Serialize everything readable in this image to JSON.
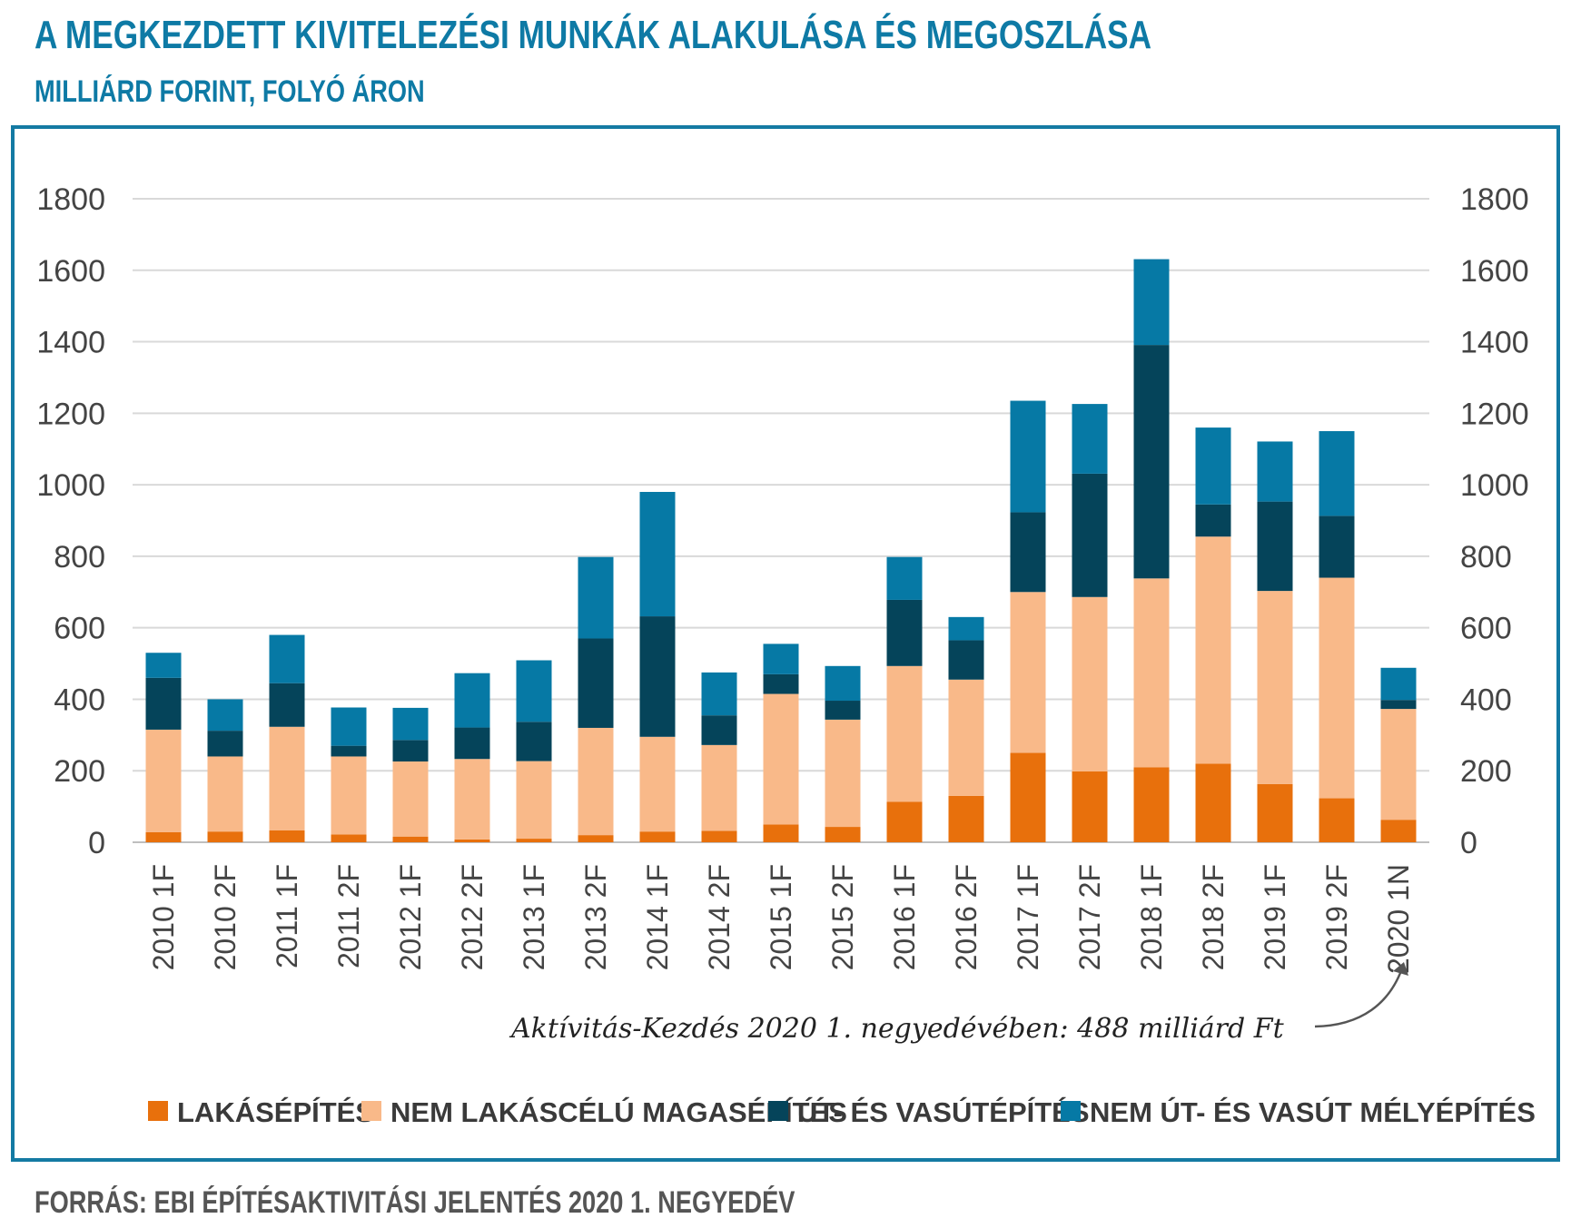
{
  "title": "A MEGKEZDETT KIVITELEZÉSI MUNKÁK ALAKULÁSA ÉS MEGOSZLÁSA",
  "subtitle": "MILLIÁRD FORINT, FOLYÓ ÁRON",
  "source": "FORRÁS: EBI ÉPÍTÉSAKTIVITÁSI JELENTÉS 2020 1. NEGYEDÉV",
  "chart_data": {
    "type": "bar",
    "stacked": true,
    "title": "A MEGKEZDETT KIVITELEZÉSI MUNKÁK ALAKULÁSA ÉS MEGOSZLÁSA",
    "ylabel": "MILLIÁRD FORINT, FOLYÓ ÁRON",
    "xlabel": "",
    "ylim": [
      0,
      1800
    ],
    "yticks": [
      0,
      200,
      400,
      600,
      800,
      1000,
      1200,
      1400,
      1600,
      1800
    ],
    "grid": true,
    "legend_position": "bottom",
    "categories": [
      "2010 1F",
      "2010 2F",
      "2011 1F",
      "2011 2F",
      "2012 1F",
      "2012 2F",
      "2013 1F",
      "2013 2F",
      "2014 1F",
      "2014 2F",
      "2015 1F",
      "2015 2F",
      "2016 1F",
      "2016 2F",
      "2017 1F",
      "2017 2F",
      "2018 1F",
      "2018 2F",
      "2019 1F",
      "2019 2F",
      "2020 1N"
    ],
    "series": [
      {
        "name": "LAKÁSÉPÍTÉS",
        "color": "#e8700c",
        "values": [
          28,
          30,
          33,
          22,
          16,
          8,
          10,
          20,
          30,
          32,
          50,
          43,
          113,
          130,
          250,
          198,
          210,
          220,
          163,
          123,
          63
        ]
      },
      {
        "name": "NEM LAKÁSCÉLÚ MAGASÉPÍTÉS",
        "color": "#f9b989",
        "values": [
          287,
          210,
          290,
          218,
          210,
          225,
          217,
          300,
          265,
          240,
          365,
          300,
          380,
          325,
          450,
          488,
          528,
          635,
          540,
          617,
          310
        ]
      },
      {
        "name": "ÚT- ÉS VASÚTÉPÍTÉS",
        "color": "#05445a",
        "values": [
          145,
          72,
          122,
          30,
          60,
          88,
          110,
          250,
          337,
          83,
          55,
          53,
          185,
          110,
          223,
          345,
          653,
          90,
          250,
          173,
          25
        ]
      },
      {
        "name": "NEM ÚT- ÉS VASÚT MÉLYÉPÍTÉS",
        "color": "#0679a5",
        "values": [
          70,
          88,
          135,
          107,
          90,
          152,
          172,
          228,
          348,
          120,
          85,
          97,
          120,
          65,
          312,
          195,
          240,
          215,
          168,
          237,
          90
        ]
      }
    ],
    "annotation": "Aktívitás-Kezdés 2020 1. negyedévében: 488 milliárd Ft"
  }
}
